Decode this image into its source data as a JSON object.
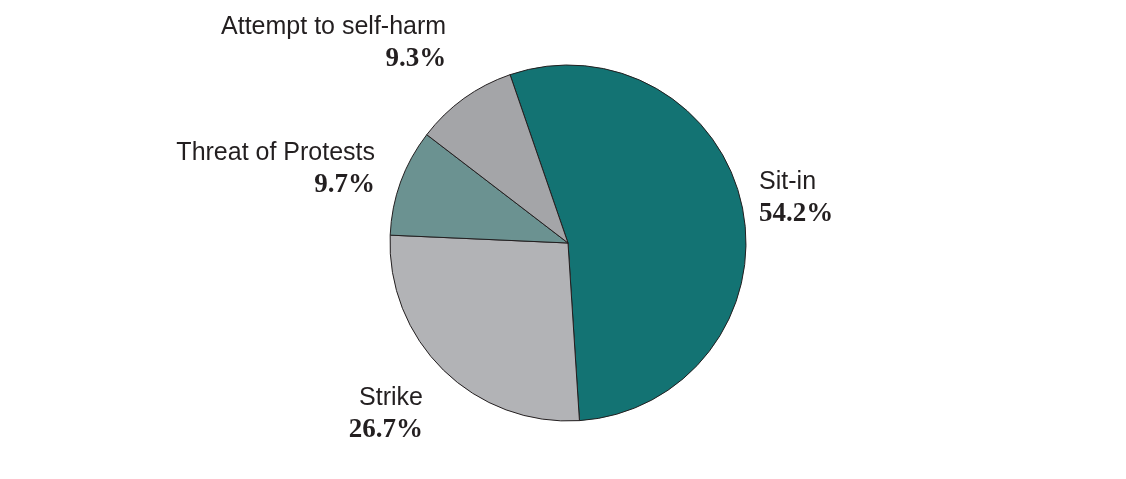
{
  "chart_data": {
    "type": "pie",
    "categories": [
      "Sit-in",
      "Strike",
      "Threat of Protests",
      "Attempt to self-harm"
    ],
    "values": [
      54.2,
      26.7,
      9.7,
      9.3
    ],
    "colors": [
      "#137373",
      "#b2b3b6",
      "#6b9291",
      "#a4a5a8"
    ],
    "value_labels": [
      "54.2%",
      "26.7%",
      "9.7%",
      "9.3%"
    ]
  }
}
